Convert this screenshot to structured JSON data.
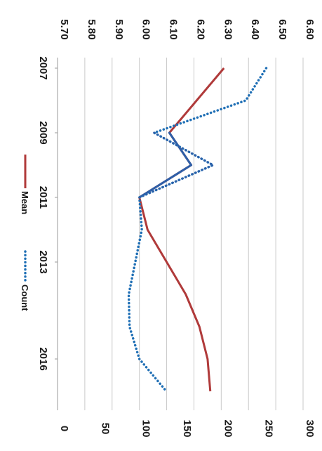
{
  "chart_data": {
    "type": "line",
    "orientation": "rotated-90-clockwise",
    "x": [
      "2007",
      "2008",
      "2009",
      "2010",
      "2011",
      "2012",
      "2013",
      "2014",
      "2015",
      "2016",
      "2017"
    ],
    "x_tick_labels": [
      "2007",
      "2009",
      "2011",
      "2013",
      "2016"
    ],
    "series": [
      {
        "name": "Mean",
        "axis": "left",
        "color": "#b03a3a",
        "style": "solid",
        "values": [
          6.31,
          6.21,
          6.11,
          6.19,
          6.0,
          6.03,
          6.1,
          6.17,
          6.22,
          6.25,
          6.26
        ]
      },
      {
        "name": "Count",
        "axis": "right",
        "color": "#1f6fb5",
        "style": "dotted",
        "values": [
          255,
          230,
          118,
          190,
          100,
          103,
          95,
          87,
          88,
          100,
          133
        ]
      }
    ],
    "highlight": {
      "from": "2009",
      "to": "2011",
      "color": "#2e5fa8"
    },
    "y_left": {
      "ticks": [
        "5.70",
        "5.80",
        "5.90",
        "6.00",
        "6.10",
        "6.20",
        "6.30",
        "6.40",
        "6.50",
        "6.60"
      ],
      "ylim": [
        5.7,
        6.6
      ]
    },
    "y_right": {
      "ticks": [
        "0",
        "50",
        "100",
        "150",
        "200",
        "250",
        "300"
      ],
      "ylim": [
        0,
        300
      ]
    },
    "grid": true,
    "legend": {
      "placement": "center-left",
      "items": [
        "Mean",
        "Count"
      ]
    }
  }
}
